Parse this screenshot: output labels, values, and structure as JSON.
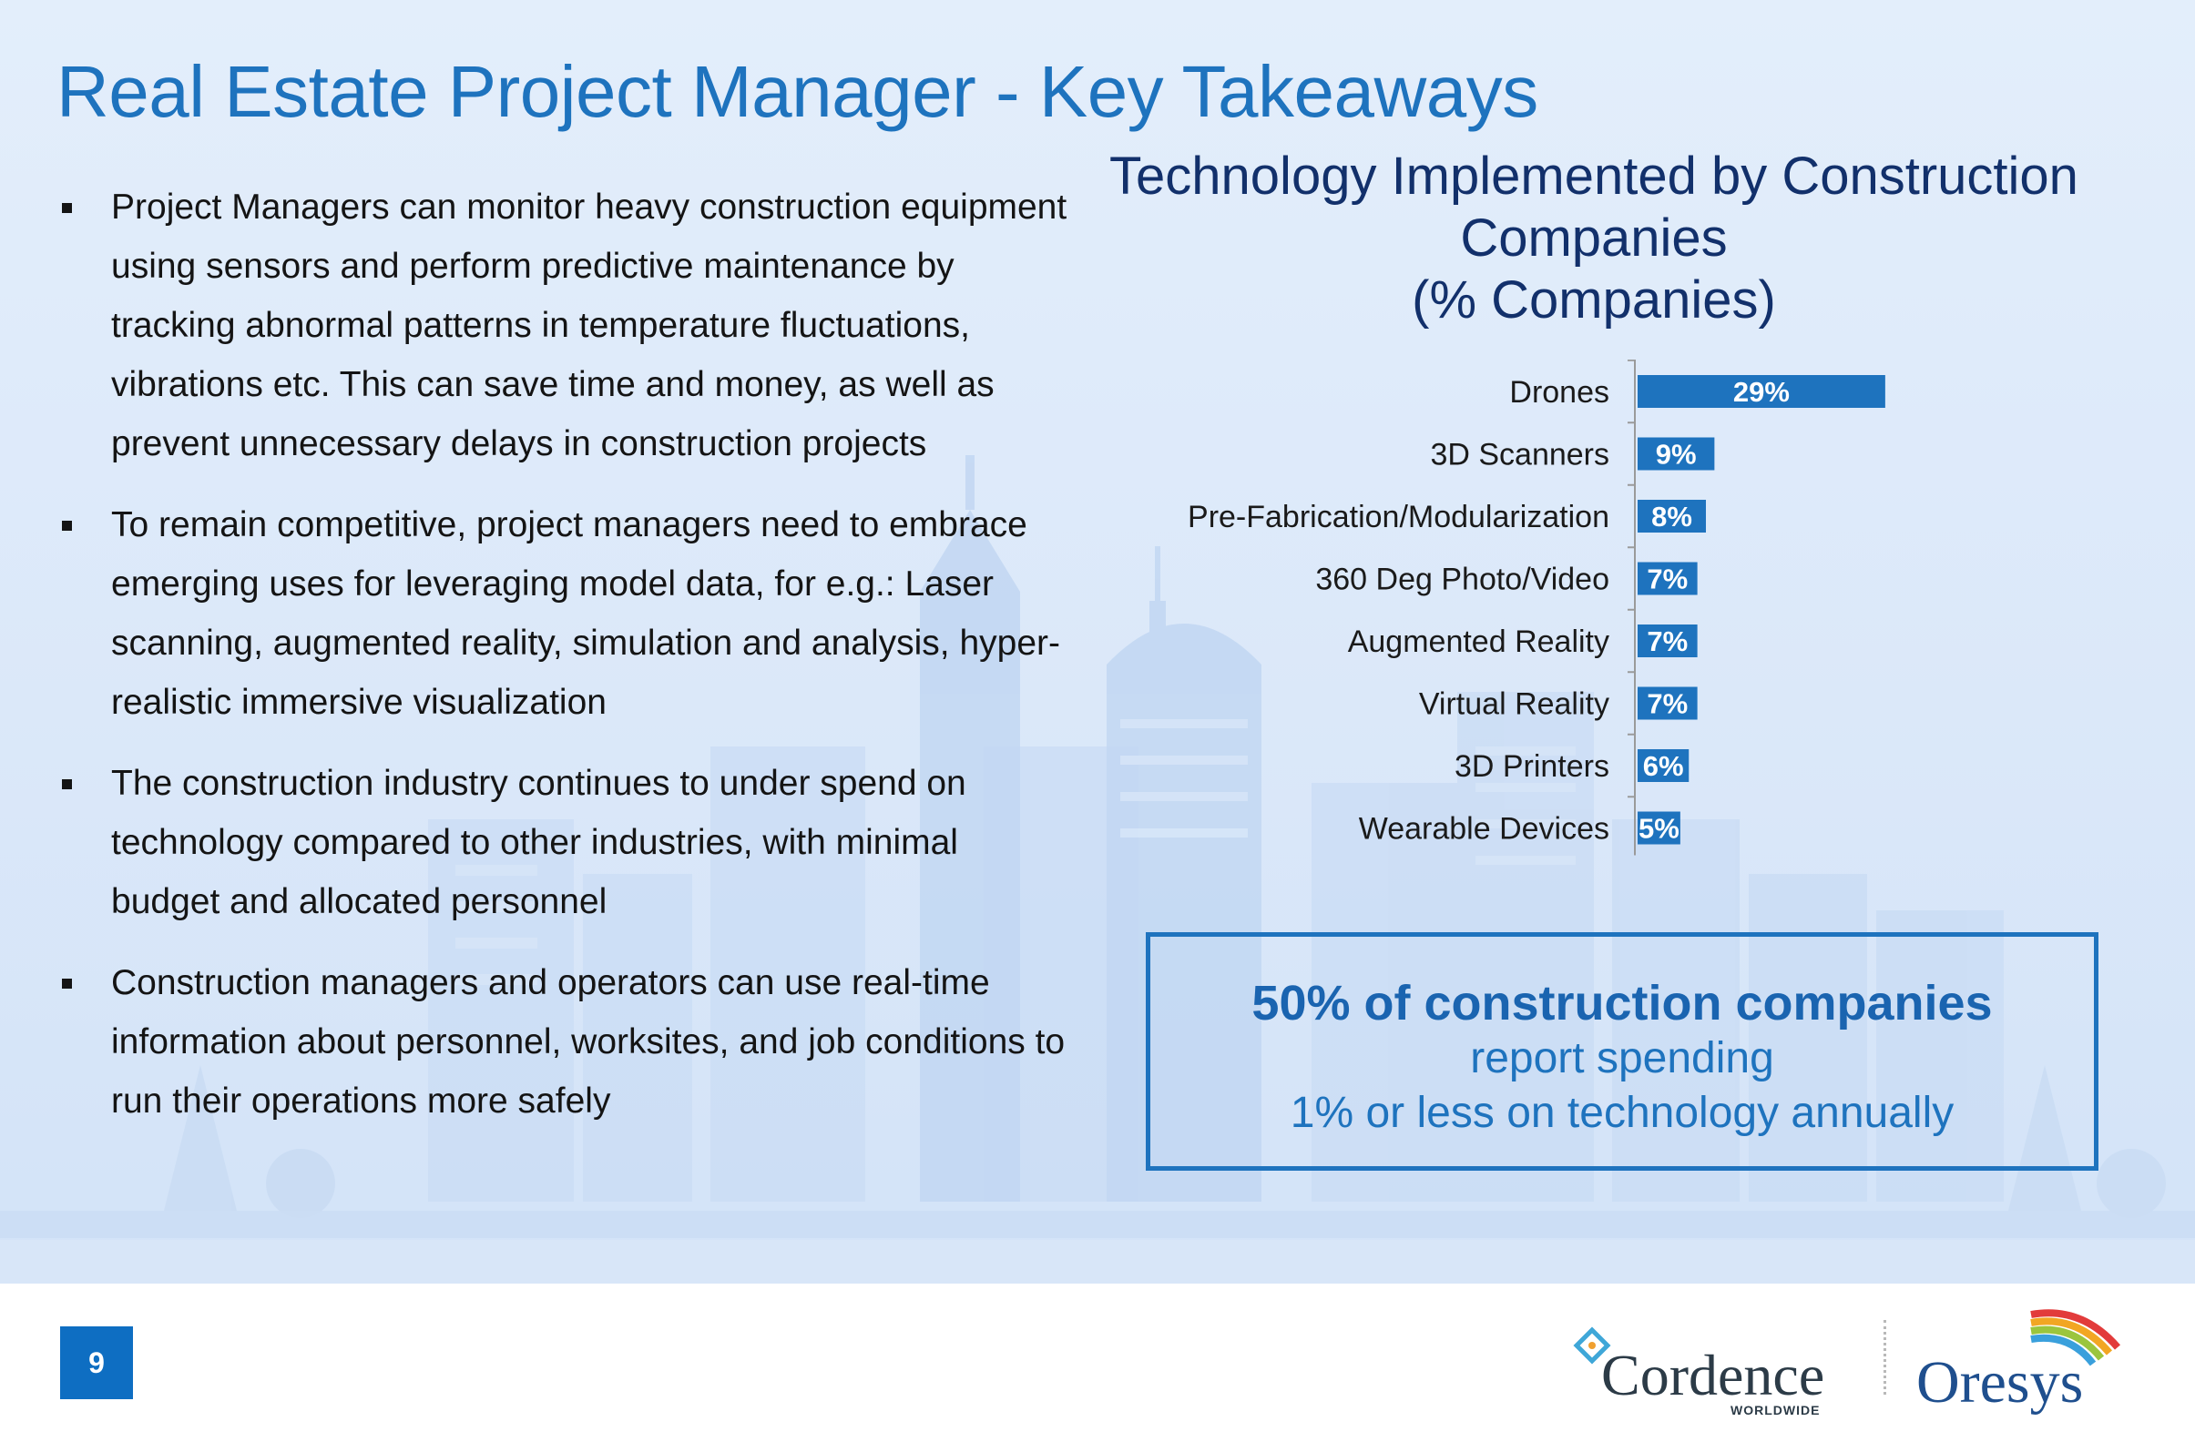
{
  "slide": {
    "title": "Real Estate Project Manager -  Key Takeaways",
    "page_number": "9"
  },
  "bullets": [
    "Project Managers can monitor heavy construction equipment using sensors and perform predictive maintenance by tracking abnormal patterns in temperature fluctuations, vibrations etc. This can save time and money, as well as prevent unnecessary delays in construction projects",
    "To remain competitive, project managers need to embrace emerging uses for leveraging model data, for e.g.: Laser scanning, augmented reality, simulation and analysis, hyper-realistic immersive visualization",
    "The construction industry continues to under spend on technology compared to other industries, with minimal budget and allocated personnel",
    "Construction managers and operators can use real-time information about personnel, worksites, and job conditions to run their operations more safely"
  ],
  "chart_title_lines": [
    "Technology Implemented by Construction",
    "Companies",
    "(% Companies)"
  ],
  "chart_data": {
    "type": "bar",
    "orientation": "horizontal",
    "title": "Technology Implemented by Construction Companies (% Companies)",
    "categories": [
      "Drones",
      "3D Scanners",
      "Pre-Fabrication/Modularization",
      "360 Deg Photo/Video",
      "Augmented Reality",
      "Virtual Reality",
      "3D Printers",
      "Wearable Devices"
    ],
    "values": [
      29,
      9,
      8,
      7,
      7,
      7,
      6,
      5
    ],
    "value_labels": [
      "29%",
      "9%",
      "8%",
      "7%",
      "7%",
      "7%",
      "6%",
      "5%"
    ],
    "unit": "%",
    "xlim": [
      0,
      40
    ],
    "bar_color": "#1e73be",
    "grid": false,
    "legend": "none"
  },
  "callout": {
    "headline": "50% of construction companies",
    "line1": "report spending",
    "line2": "1% or less on technology annually"
  },
  "logos": {
    "cordence": {
      "name": "Cordence",
      "subtitle": "WORLDWIDE"
    },
    "oresys": {
      "name": "Oresys"
    }
  },
  "colors": {
    "title": "#1e73be",
    "accent": "#1e73be",
    "page_number_bg": "#0e6ec2",
    "chart_title": "#12306b"
  }
}
